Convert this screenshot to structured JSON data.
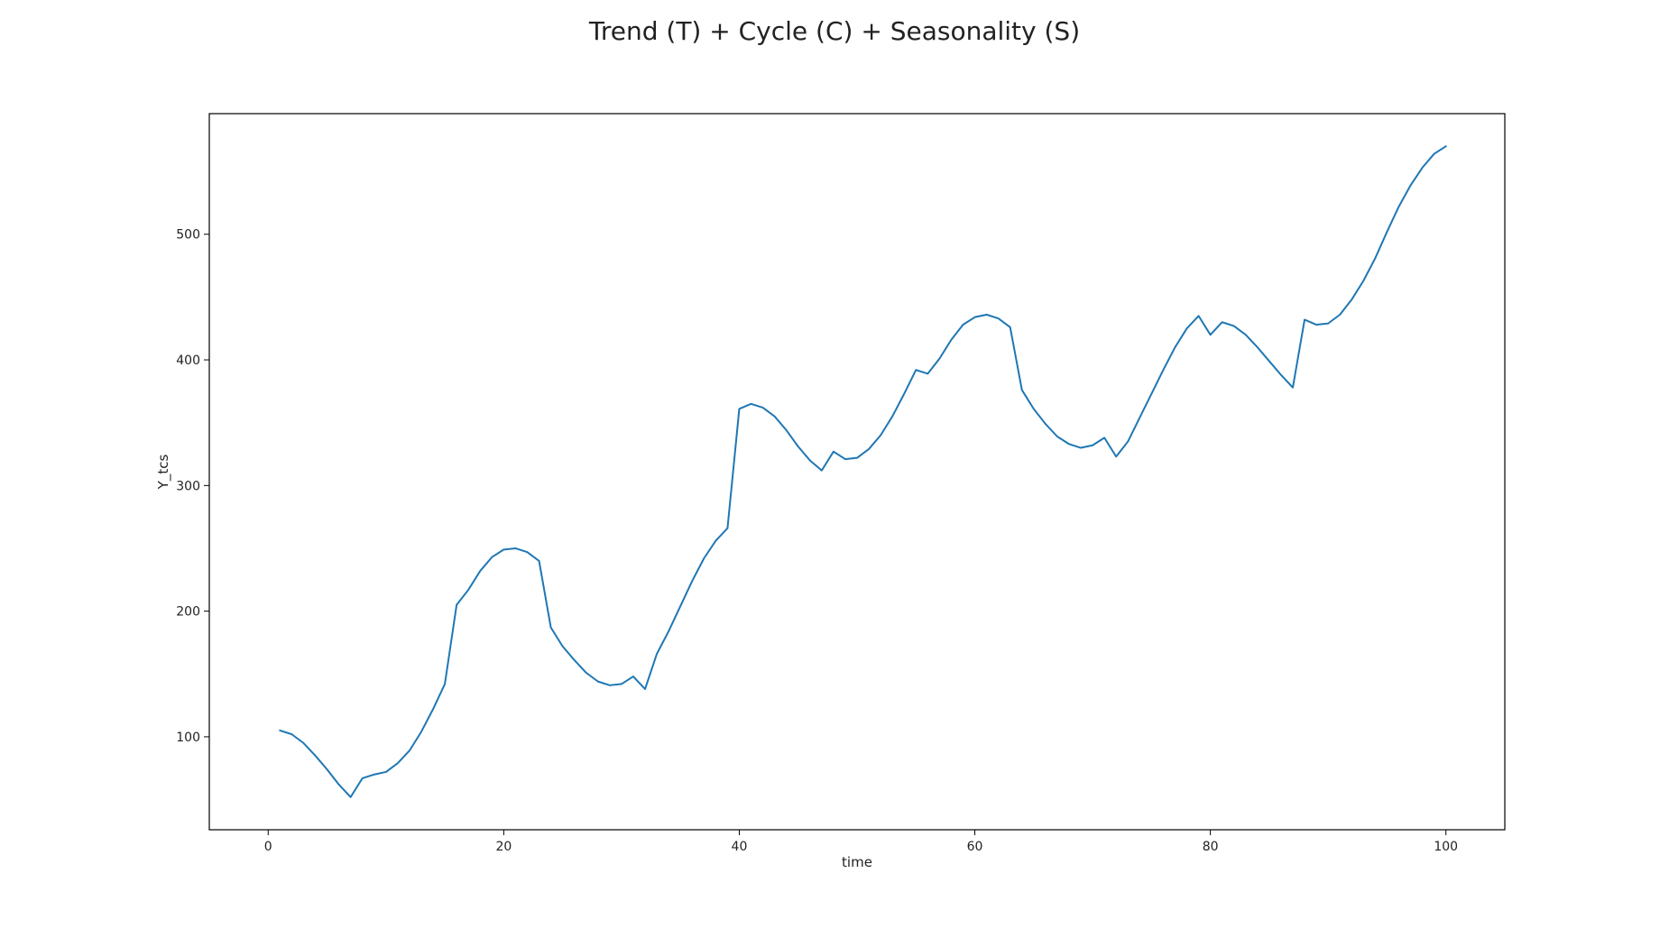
{
  "chart_data": {
    "type": "line",
    "title": "Trend (T) + Cycle (C) + Seasonality (S)",
    "xlabel": "time",
    "ylabel": "Y_tcs",
    "xlim": [
      -5,
      105
    ],
    "ylim": [
      26,
      596
    ],
    "xticks": [
      0,
      20,
      40,
      60,
      80,
      100
    ],
    "yticks": [
      100,
      200,
      300,
      400,
      500
    ],
    "grid": false,
    "color": "#1f77b4",
    "x": [
      1,
      2,
      3,
      4,
      5,
      6,
      7,
      8,
      9,
      10,
      11,
      12,
      13,
      14,
      15,
      16,
      17,
      18,
      19,
      20,
      21,
      22,
      23,
      24,
      25,
      26,
      27,
      28,
      29,
      30,
      31,
      32,
      33,
      34,
      35,
      36,
      37,
      38,
      39,
      40,
      41,
      42,
      43,
      44,
      45,
      46,
      47,
      48,
      49,
      50,
      51,
      52,
      53,
      54,
      55,
      56,
      57,
      58,
      59,
      60,
      61,
      62,
      63,
      64,
      65,
      66,
      67,
      68,
      69,
      70,
      71,
      72,
      73,
      74,
      75,
      76,
      77,
      78,
      79,
      80,
      81,
      82,
      83,
      84,
      85,
      86,
      87,
      88,
      89,
      90,
      91,
      92,
      93,
      94,
      95,
      96,
      97,
      98,
      99,
      100
    ],
    "y": [
      105,
      102,
      95,
      85,
      74,
      62,
      52,
      67,
      70,
      72,
      79,
      89,
      104,
      122,
      142,
      205,
      217,
      232,
      243,
      249,
      250,
      247,
      240,
      187,
      172,
      161,
      151,
      144,
      141,
      142,
      148,
      138,
      166,
      184,
      204,
      224,
      242,
      256,
      266,
      361,
      365,
      362,
      355,
      344,
      331,
      320,
      312,
      327,
      321,
      322,
      329,
      340,
      355,
      373,
      392,
      389,
      401,
      416,
      428,
      434,
      436,
      433,
      426,
      376,
      361,
      349,
      339,
      333,
      330,
      332,
      338,
      323,
      335,
      354,
      373,
      392,
      410,
      425,
      435,
      420,
      430,
      427,
      420,
      410,
      399,
      388,
      378,
      432,
      428,
      429,
      436,
      448,
      463,
      481,
      502,
      522,
      539,
      553,
      564,
      570
    ]
  }
}
